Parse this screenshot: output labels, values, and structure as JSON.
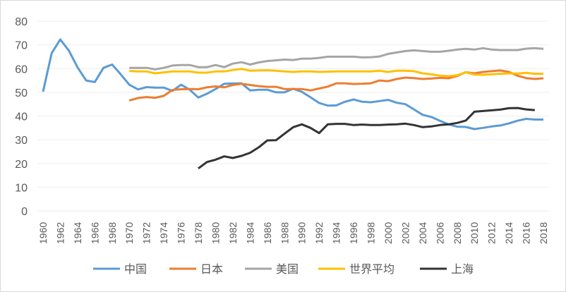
{
  "chart_data": {
    "type": "line",
    "title": "",
    "xlabel": "",
    "ylabel": "",
    "ylim": [
      0,
      80
    ],
    "yticks": [
      "0",
      "10",
      "20",
      "30",
      "40",
      "50",
      "60",
      "70",
      "80"
    ],
    "x_start": 1960,
    "x_end": 2018,
    "xtick_labels": [
      "1960",
      "1962",
      "1964",
      "1966",
      "1968",
      "1970",
      "1972",
      "1974",
      "1976",
      "1978",
      "1980",
      "1982",
      "1984",
      "1986",
      "1988",
      "1990",
      "1992",
      "1994",
      "1996",
      "1998",
      "2000",
      "2002",
      "2004",
      "2006",
      "2008",
      "2010",
      "2012",
      "2014",
      "2016",
      "2018"
    ],
    "grid": true,
    "legend_position": "bottom",
    "series": [
      {
        "name": "中国",
        "color": "#5b9bd5",
        "start": 1960,
        "values": [
          50.3,
          66.5,
          72.3,
          67.5,
          60.5,
          55,
          54.3,
          60.3,
          61.7,
          57.6,
          53.2,
          51.2,
          52.2,
          52,
          52,
          50.6,
          53.2,
          51.1,
          47.8,
          49.4,
          51.4,
          53.6,
          53.7,
          53.8,
          50.8,
          51.1,
          51.1,
          50,
          50,
          51.5,
          50.2,
          47.9,
          45.5,
          44.4,
          44.5,
          46,
          47,
          46,
          45.8,
          46.3,
          46.8,
          45.6,
          45,
          42.8,
          40.5,
          39.6,
          38,
          36.5,
          35.5,
          35.4,
          34.5,
          35,
          35.6,
          36,
          36.9,
          38,
          38.8,
          38.5,
          38.5
        ]
      },
      {
        "name": "日本",
        "color": "#ed7d31",
        "start": 1970,
        "values": [
          46.5,
          47.6,
          48,
          47.7,
          48.5,
          51,
          51.3,
          51.4,
          51.3,
          52.1,
          52.5,
          52.1,
          53.1,
          53.6,
          53.1,
          52.6,
          52.3,
          52.3,
          51.4,
          51.4,
          51.4,
          50.8,
          51.6,
          52.4,
          53.8,
          53.8,
          53.5,
          53.6,
          53.8,
          55,
          54.7,
          55.6,
          56.2,
          56,
          55.6,
          55.8,
          56.1,
          55.9,
          56.9,
          58.5,
          58,
          58.6,
          58.9,
          59.2,
          58.6,
          57,
          56,
          55.6,
          55.9
        ]
      },
      {
        "name": "美国",
        "color": "#a5a5a5",
        "start": 1970,
        "values": [
          60.3,
          60.3,
          60.3,
          59.7,
          60.3,
          61.3,
          61.5,
          61.5,
          60.6,
          60.6,
          61.5,
          60.6,
          62.1,
          62.7,
          61.7,
          62.6,
          63.2,
          63.5,
          63.8,
          63.6,
          64.2,
          64.2,
          64.5,
          65,
          65,
          65,
          65,
          64.7,
          64.8,
          65.1,
          66.2,
          66.8,
          67.4,
          67.7,
          67.4,
          67.1,
          67.1,
          67.5,
          68,
          68.3,
          68,
          68.6,
          68,
          67.8,
          67.8,
          67.8,
          68.4,
          68.6,
          68.3
        ]
      },
      {
        "name": "世界平均",
        "color": "#ffc000",
        "start": 1970,
        "values": [
          59,
          58.8,
          58.8,
          58,
          58.4,
          58.8,
          58.8,
          58.8,
          58.3,
          58.3,
          58.8,
          58.8,
          59.4,
          59.9,
          59.1,
          59.2,
          59.3,
          59.1,
          58.8,
          58.6,
          58.8,
          58.8,
          58.6,
          58.7,
          58.8,
          58.8,
          58.8,
          58.8,
          58.8,
          59.1,
          58.6,
          59.1,
          59.1,
          58.9,
          58,
          57.6,
          57,
          56.8,
          57.2,
          58.4,
          57.5,
          57.4,
          57.6,
          57.8,
          58,
          57.9,
          58.2,
          57.8,
          57.8
        ]
      },
      {
        "name": "上海",
        "color": "#333333",
        "start": 1978,
        "values": [
          17.9,
          20.6,
          21.6,
          23,
          22.3,
          23.2,
          24.5,
          26.8,
          29.7,
          29.8,
          32.6,
          35.3,
          36.5,
          35,
          32.8,
          36.5,
          36.7,
          36.7,
          36.2,
          36.4,
          36.2,
          36.2,
          36.4,
          36.5,
          36.8,
          36.2,
          35.3,
          35.6,
          36.2,
          36.5,
          37.1,
          38.1,
          41.8,
          42.1,
          42.4,
          42.7,
          43.3,
          43.4,
          42.8,
          42.5
        ]
      }
    ]
  }
}
